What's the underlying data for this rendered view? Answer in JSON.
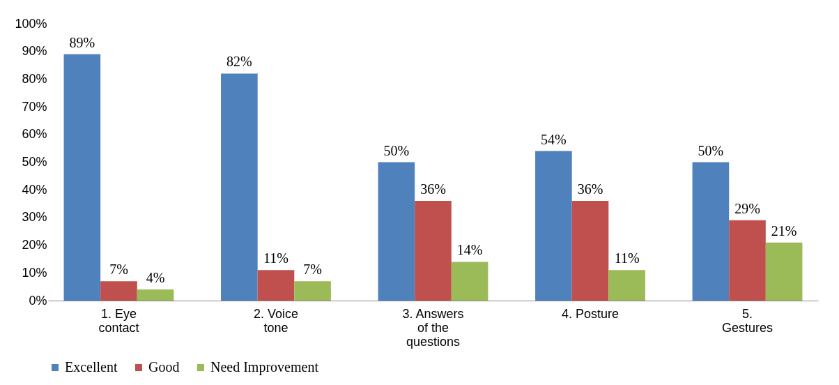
{
  "chart_data": {
    "type": "bar",
    "categories": [
      "1. Eye contact",
      "2. Voice tone",
      "3. Answers of the questions",
      "4. Posture",
      "5. Gestures"
    ],
    "series": [
      {
        "name": "Excellent",
        "color": "#4f81bd",
        "values": [
          89,
          82,
          50,
          54,
          50
        ],
        "value_labels": [
          "89%",
          "82%",
          "50%",
          "54%",
          "50%"
        ]
      },
      {
        "name": "Good",
        "color": "#c0504d",
        "values": [
          7,
          11,
          36,
          36,
          29
        ],
        "value_labels": [
          "7%",
          "11%",
          "36%",
          "36%",
          "29%"
        ]
      },
      {
        "name": "Need Improvement",
        "color": "#9bbb59",
        "values": [
          4,
          7,
          14,
          11,
          21
        ],
        "value_labels": [
          "4%",
          "7%",
          "14%",
          "11%",
          "21%"
        ]
      }
    ],
    "ylim": [
      0,
      100
    ],
    "yticks": [
      {
        "value": 0,
        "label": "0%"
      },
      {
        "value": 10,
        "label": "10%"
      },
      {
        "value": 20,
        "label": "20%"
      },
      {
        "value": 30,
        "label": "30%"
      },
      {
        "value": 40,
        "label": "40%"
      },
      {
        "value": 50,
        "label": "50%"
      },
      {
        "value": 60,
        "label": "60%"
      },
      {
        "value": 70,
        "label": "70%"
      },
      {
        "value": 80,
        "label": "80%"
      },
      {
        "value": 90,
        "label": "90%"
      },
      {
        "value": 100,
        "label": "100%"
      }
    ],
    "grid": false,
    "legend": "bottom"
  }
}
